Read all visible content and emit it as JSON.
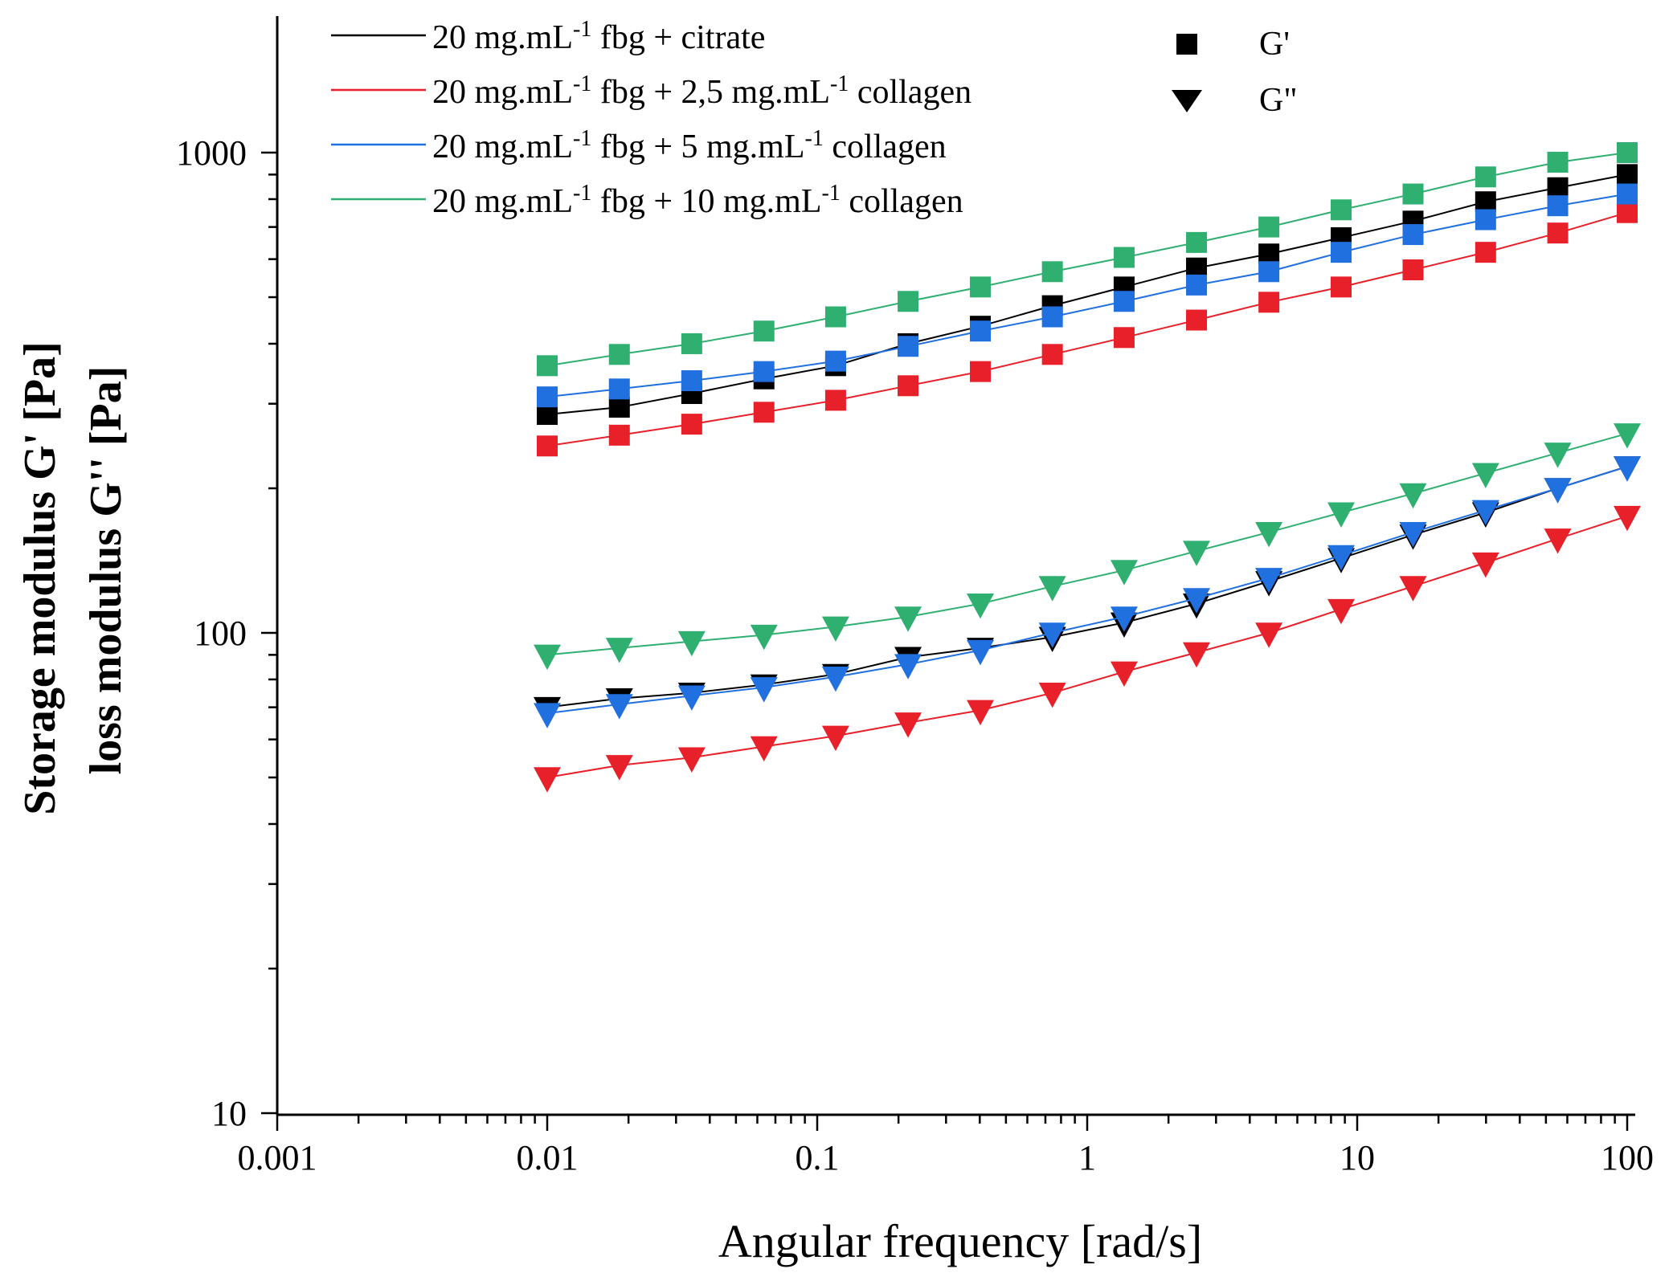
{
  "chart_data": {
    "type": "scatter",
    "xscale": "log",
    "yscale": "log",
    "xlabel": "Angular frequency [rad/s]",
    "ylabel": [
      "Storage modulus  G' [Pa]",
      "loss modulus G'' [Pa]"
    ],
    "xlim": [
      0.001,
      110
    ],
    "ylim": [
      10,
      2000
    ],
    "xticks": [
      0.001,
      0.01,
      0.1,
      1,
      10,
      100
    ],
    "xtick_labels": [
      "0.001",
      "0.01",
      "0.1",
      "1",
      "10",
      "100"
    ],
    "yticks": [
      10,
      100,
      1000
    ],
    "ytick_labels": [
      "10",
      "100",
      "1000"
    ],
    "x": [
      0.01,
      0.0185,
      0.0343,
      0.0635,
      0.117,
      0.217,
      0.402,
      0.743,
      1.37,
      2.54,
      4.71,
      8.72,
      16.1,
      29.9,
      55.3,
      100
    ],
    "legend": {
      "position": "top",
      "series_labels": {
        "citrate": {
          "main": "20 mg.mL",
          "sup1": "-1",
          "mid": " fbg + citrate",
          "sup2": "",
          "tail": ""
        },
        "c25": {
          "main": "20 mg.mL",
          "sup1": "-1",
          "mid": " fbg + 2,5 mg.mL",
          "sup2": "-1",
          "tail": " collagen"
        },
        "c5": {
          "main": "20 mg.mL",
          "sup1": "-1",
          "mid": " fbg + 5 mg.mL",
          "sup2": "-1",
          "tail": " collagen"
        },
        "c10": {
          "main": "20 mg.mL",
          "sup1": "-1",
          "mid": " fbg + 10 mg.mL",
          "sup2": "-1",
          "tail": " collagen"
        }
      },
      "marker_labels": {
        "square": "G'",
        "triangle": "G\""
      }
    },
    "series": [
      {
        "key": "citrate",
        "name": "20 mg.mL-1 fbg + citrate",
        "color": "#000000",
        "marker": "square",
        "modulus": "G'",
        "values": [
          285,
          295,
          315,
          338,
          360,
          400,
          435,
          480,
          525,
          575,
          615,
          665,
          720,
          790,
          845,
          900
        ]
      },
      {
        "key": "c25",
        "name": "20 mg.mL-1 fbg + 2,5 mg.mL-1 collagen",
        "color": "#e8202a",
        "marker": "square",
        "modulus": "G'",
        "values": [
          245,
          258,
          272,
          288,
          305,
          327,
          350,
          380,
          412,
          448,
          488,
          525,
          570,
          620,
          680,
          750
        ]
      },
      {
        "key": "c5",
        "name": "20 mg.mL-1 fbg + 5 mg.mL-1 collagen",
        "color": "#2070e0",
        "marker": "square",
        "modulus": "G'",
        "values": [
          310,
          322,
          335,
          350,
          368,
          395,
          425,
          455,
          490,
          530,
          565,
          620,
          675,
          725,
          775,
          820
        ]
      },
      {
        "key": "c10",
        "name": "20 mg.mL-1 fbg + 10 mg.mL-1 collagen",
        "color": "#30b070",
        "marker": "square",
        "modulus": "G'",
        "values": [
          360,
          380,
          400,
          425,
          455,
          490,
          525,
          565,
          605,
          650,
          700,
          760,
          820,
          890,
          955,
          1000
        ]
      },
      {
        "key": "citrate",
        "name": "20 mg.mL-1 fbg + citrate",
        "color": "#000000",
        "marker": "triangle",
        "modulus": "G\"",
        "values": [
          70,
          73,
          75,
          78,
          82,
          89,
          93,
          98,
          105,
          115,
          128,
          143,
          160,
          178,
          200,
          222
        ]
      },
      {
        "key": "c25",
        "name": "20 mg.mL-1 fbg + 2,5 mg.mL-1 collagen",
        "color": "#e8202a",
        "marker": "triangle",
        "modulus": "G\"",
        "values": [
          50,
          53,
          55,
          58,
          61,
          65,
          69,
          75,
          83,
          91,
          100,
          112,
          125,
          140,
          157,
          175
        ]
      },
      {
        "key": "c5",
        "name": "20 mg.mL-1 fbg + 5 mg.mL-1 collagen",
        "color": "#2070e0",
        "marker": "triangle",
        "modulus": "G\"",
        "values": [
          68,
          71,
          74,
          77,
          81,
          86,
          92,
          100,
          108,
          118,
          130,
          145,
          162,
          180,
          200,
          222
        ]
      },
      {
        "key": "c10",
        "name": "20 mg.mL-1 fbg + 10 mg.mL-1 collagen",
        "color": "#30b070",
        "marker": "triangle",
        "modulus": "G\"",
        "values": [
          90,
          93,
          96,
          99,
          103,
          108,
          115,
          125,
          135,
          148,
          162,
          178,
          195,
          215,
          237,
          260
        ]
      }
    ]
  }
}
